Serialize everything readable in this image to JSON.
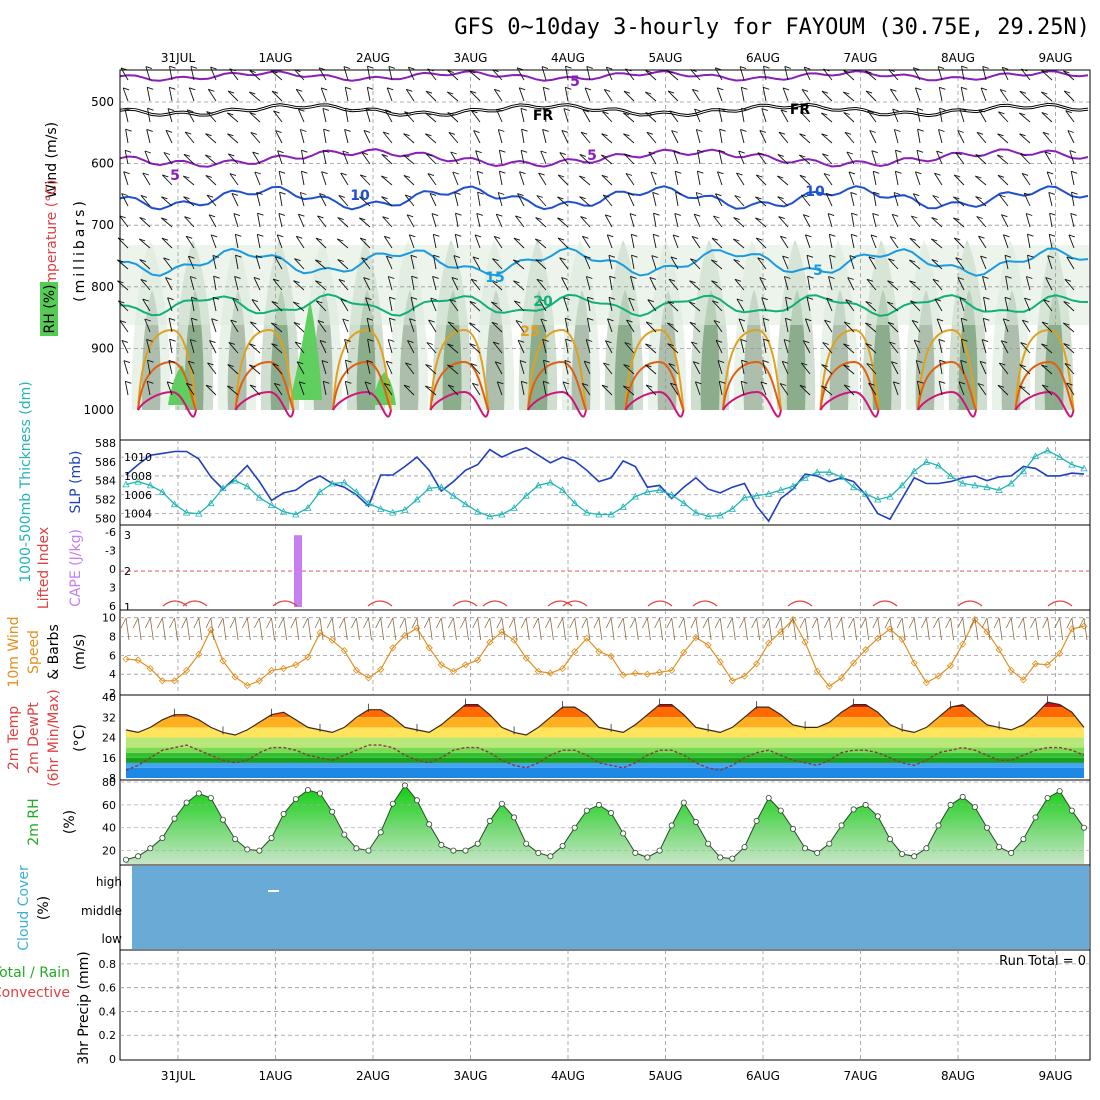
{
  "title": "GFS 0~10day 3-hourly for FAYOUM (30.75E, 29.25N)",
  "dates": [
    "31JUL",
    "1AUG",
    "2AUG",
    "3AUG",
    "4AUG",
    "5AUG",
    "6AUG",
    "7AUG",
    "8AUG",
    "9AUG"
  ],
  "colors": {
    "frame": "#000000",
    "grid": "#b0b0b0",
    "temp_purple": "#8a1fb8",
    "temp_blue10": "#1e4fd0",
    "temp_blue15": "#1a9be0",
    "temp_green20": "#10b07a",
    "temp_orange25": "#e0a020",
    "temp_orange30": "#e06010",
    "temp_magenta35": "#d0157a",
    "slp": "#1f3fbf",
    "thickness": "#22b5b5",
    "cape": "#c57ff0",
    "lifted": "#e04040",
    "wind10": "#e09020",
    "barb_brown": "#8a6a40",
    "cloud": "#6aaad6",
    "rh2m_fill": "#22cc22"
  },
  "panels": {
    "upper_air": {
      "ylabel_wind": "Wind (m/s)",
      "ylabel_temp": "Temperature (°C)",
      "ylabel_rh": "RH (%)",
      "ylabel_unit": "(millibars)",
      "yticks": [
        "500",
        "600",
        "700",
        "800",
        "900",
        "1000"
      ],
      "contour_labels": [
        {
          "text": "5",
          "color": "temp_purple"
        },
        {
          "text": "5",
          "color": "temp_purple"
        },
        {
          "text": "5",
          "color": "temp_purple"
        },
        {
          "text": "FR",
          "color": "frame"
        },
        {
          "text": "FR",
          "color": "frame"
        },
        {
          "text": "10",
          "color": "temp_blue10"
        },
        {
          "text": "10",
          "color": "temp_blue10"
        },
        {
          "text": "15",
          "color": "temp_blue15"
        },
        {
          "text": "5",
          "color": "temp_blue15"
        },
        {
          "text": "20",
          "color": "temp_green20"
        },
        {
          "text": "25",
          "color": "temp_orange25"
        }
      ]
    },
    "slp_thickness": {
      "ylabel_thickness": "1000-500mb Thickness (dm)",
      "ylabel_slp": "SLP (mb)",
      "left_ticks": [
        "588",
        "586",
        "584",
        "582",
        "580"
      ],
      "right_ticks": [
        "1010",
        "1008",
        "1006",
        "1004"
      ]
    },
    "cape_li": {
      "ylabel_li": "Lifted Index",
      "ylabel_cape": "CAPE (J/kg)",
      "left_ticks": [
        "-6",
        "-3",
        "0",
        "3",
        "6"
      ],
      "right_ticks": [
        "3",
        "2",
        "1"
      ]
    },
    "wind10m": {
      "ylabel_a": "10m Wind",
      "ylabel_b": "Speed",
      "ylabel_c": "& Barbs",
      "ylabel_unit": "(m/s)",
      "ticks": [
        "10",
        "8",
        "6",
        "4",
        "2"
      ]
    },
    "temp2m": {
      "ylabel_a": "2m Temp",
      "ylabel_b": "2m DewPt",
      "ylabel_c": "(6hr Min/Max)",
      "ylabel_unit": "(°C)",
      "ticks": [
        "40",
        "32",
        "24",
        "16",
        "8"
      ]
    },
    "rh2m": {
      "ylabel": "2m RH",
      "ylabel_unit": "(%)",
      "ticks": [
        "80",
        "60",
        "40",
        "20"
      ]
    },
    "cloud": {
      "ylabel": "Cloud Cover",
      "ylabel_unit": "(%)",
      "levels": [
        "high",
        "middle",
        "low"
      ]
    },
    "precip": {
      "ylabel_a": "Total / Rain",
      "ylabel_b": "Convective",
      "ylabel_c": "3hr Precip (mm)",
      "ticks": [
        "0.8",
        "0.6",
        "0.4",
        "0.2",
        "0"
      ],
      "run_total": "Run Total = 0"
    }
  },
  "chart_data": [
    {
      "type": "line",
      "title": "SLP / 1000-500mb Thickness",
      "x_unit": "3-hourly steps from 31JUL",
      "series": [
        {
          "name": "SLP (mb)",
          "axis": "right",
          "values": [
            1008.1,
            1009.2,
            1010.2,
            1010.4,
            1010.6,
            1010.6,
            1009.8,
            1007.9,
            1006.6,
            1007.8,
            1009.1,
            1007.4,
            1005.4,
            1006.2,
            1006.5,
            1007.4,
            1008.0,
            1007.2,
            1006.8,
            1006.0,
            1004.8,
            1008.1,
            1008.1,
            1009.0,
            1010.0,
            1008.6,
            1006.4,
            1007.4,
            1008.6,
            1009.2,
            1010.8,
            1010.0,
            1010.6,
            1011.0,
            1010.2,
            1009.4,
            1010.0,
            1009.6,
            1008.6,
            1007.4,
            1007.8,
            1009.6,
            1009.0,
            1006.8,
            1007.0,
            1005.6,
            1006.8,
            1007.8,
            1006.6,
            1006.2,
            1006.8,
            1007.2,
            1004.8,
            1003.2,
            1005.6,
            1006.6,
            1008.2,
            1008.0,
            1007.4,
            1007.8,
            1007.4,
            1006.0,
            1004.0,
            1003.4,
            1005.6,
            1007.8,
            1007.2,
            1007.2,
            1007.4,
            1007.8,
            1008.0,
            1007.5,
            1007.9,
            1008.0,
            1009.0,
            1008.8,
            1008.0,
            1008.0,
            1008.3,
            1008.2
          ]
        },
        {
          "name": "1000-500mb Thickness (dm)",
          "axis": "left",
          "values": [
            583.6,
            583.9,
            583.5,
            582.8,
            581.5,
            580.6,
            580.5,
            581.6,
            583.2,
            584.0,
            583.4,
            582.2,
            581.4,
            580.7,
            580.4,
            581.1,
            582.8,
            583.7,
            583.8,
            582.8,
            581.6,
            581.0,
            580.6,
            580.9,
            582.0,
            583.2,
            583.3,
            582.4,
            581.5,
            580.7,
            580.2,
            580.4,
            581.1,
            582.4,
            583.5,
            583.8,
            583.0,
            581.6,
            580.6,
            580.4,
            580.4,
            581.2,
            582.3,
            582.8,
            583.0,
            582.5,
            581.6,
            580.6,
            580.2,
            580.3,
            581.0,
            582.2,
            582.4,
            582.6,
            583.0,
            583.4,
            584.3,
            584.9,
            584.9,
            584.4,
            583.3,
            582.6,
            582.0,
            582.3,
            583.5,
            585.0,
            586.0,
            585.6,
            584.5,
            583.7,
            583.5,
            583.3,
            583.0,
            583.7,
            585.0,
            586.6,
            587.2,
            586.5,
            585.7,
            585.3
          ]
        }
      ],
      "xlabel": "",
      "ylabel": "",
      "ylim_slp": [
        1003,
        1011.5
      ],
      "ylim_thickness": [
        579.5,
        588
      ]
    },
    {
      "type": "bar",
      "title": "CAPE",
      "categories": [
        "1AUG 06Z"
      ],
      "values": [
        3.0
      ],
      "ylabel": "CAPE (J/kg)",
      "ylim": [
        1,
        3.2
      ]
    },
    {
      "type": "line",
      "title": "10m Wind Speed",
      "series": [
        {
          "name": "Speed (m/s)",
          "values": [
            5.6,
            5.5,
            4.6,
            3.3,
            3.3,
            4.4,
            6.1,
            8.7,
            5.4,
            3.7,
            2.8,
            3.3,
            4.4,
            4.6,
            5.0,
            5.8,
            8.4,
            7.6,
            6.5,
            4.4,
            3.6,
            4.5,
            6.8,
            8.1,
            8.9,
            6.8,
            5.0,
            4.3,
            5.0,
            5.5,
            7.4,
            8.5,
            7.6,
            5.7,
            4.3,
            4.1,
            4.6,
            6.4,
            7.8,
            6.4,
            5.9,
            3.9,
            4.1,
            4.0,
            4.2,
            4.4,
            6.3,
            7.9,
            7.1,
            5.3,
            3.3,
            3.8,
            5.1,
            7.3,
            8.5,
            9.8,
            7.4,
            4.3,
            2.7,
            3.6,
            5.2,
            6.6,
            7.8,
            8.8,
            7.7,
            5.2,
            3.1,
            3.8,
            4.9,
            7.2,
            9.8,
            8.5,
            6.6,
            4.4,
            3.4,
            5.1,
            5.0,
            6.2,
            8.8,
            9.1
          ]
        }
      ],
      "ylim": [
        2,
        10.5
      ]
    },
    {
      "type": "area",
      "title": "2m Temperature / Dew Point",
      "series": [
        {
          "name": "2m Temp (°C)",
          "values": [
            27,
            26,
            28,
            31,
            33,
            33,
            31,
            28,
            26,
            25,
            27,
            30,
            33,
            34,
            31,
            28,
            27,
            26,
            28,
            32,
            35,
            35,
            32,
            28,
            27,
            26,
            29,
            33,
            37,
            37,
            33,
            28,
            26,
            25,
            28,
            32,
            36,
            36,
            33,
            28,
            27,
            26,
            29,
            33,
            37,
            37,
            33,
            28,
            27,
            26,
            28,
            32,
            36,
            36,
            33,
            29,
            28,
            28,
            30,
            34,
            37,
            37,
            34,
            29,
            27,
            26,
            28,
            32,
            36,
            37,
            33,
            29,
            28,
            27,
            29,
            33,
            38,
            37,
            34,
            28
          ]
        },
        {
          "name": "2m DewPt (°C)",
          "values": [
            11,
            13,
            16,
            19,
            20,
            21,
            19,
            17,
            15,
            14,
            15,
            18,
            20,
            20,
            19,
            17,
            16,
            15,
            17,
            19,
            21,
            21,
            20,
            17,
            15,
            14,
            16,
            19,
            20,
            20,
            18,
            15,
            13,
            12,
            14,
            17,
            19,
            19,
            17,
            14,
            13,
            12,
            14,
            17,
            19,
            19,
            17,
            14,
            12,
            11,
            13,
            16,
            18,
            19,
            17,
            15,
            14,
            13,
            15,
            18,
            19,
            19,
            18,
            16,
            14,
            13,
            15,
            18,
            19,
            20,
            19,
            17,
            15,
            15,
            17,
            19,
            20,
            20,
            19,
            17
          ]
        }
      ],
      "ylim": [
        8,
        40
      ]
    },
    {
      "type": "area",
      "title": "2m RH",
      "series": [
        {
          "name": "2m RH (%)",
          "values": [
            12,
            15,
            22,
            31,
            48,
            62,
            70,
            66,
            47,
            30,
            21,
            20,
            31,
            52,
            65,
            73,
            70,
            54,
            34,
            22,
            20,
            36,
            61,
            77,
            64,
            43,
            25,
            20,
            20,
            26,
            46,
            61,
            49,
            26,
            18,
            15,
            24,
            40,
            55,
            60,
            53,
            35,
            18,
            14,
            20,
            42,
            62,
            45,
            26,
            14,
            13,
            23,
            46,
            66,
            55,
            39,
            22,
            18,
            26,
            42,
            56,
            60,
            50,
            30,
            17,
            15,
            22,
            42,
            60,
            67,
            58,
            40,
            23,
            18,
            30,
            49,
            66,
            72,
            55,
            40
          ]
        }
      ],
      "ylim": [
        10,
        80
      ]
    },
    {
      "type": "table",
      "title": "3hr Precip",
      "values": [],
      "ylim": [
        0,
        0.9
      ]
    }
  ]
}
